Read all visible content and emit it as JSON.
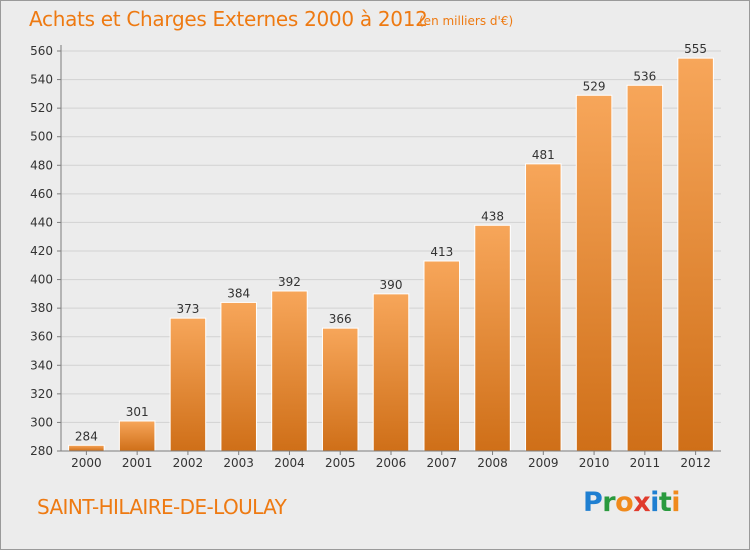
{
  "header": {
    "title": "Achats et Charges Externes 2000 à 2012",
    "unit": "(en milliers d'€)"
  },
  "footer": {
    "commune": "SAINT-HILAIRE-DE-LOULAY",
    "brand": "Proxiti",
    "brand_letters": [
      {
        "ch": "P",
        "color": "#1f7fd1"
      },
      {
        "ch": "r",
        "color": "#2a9a3e"
      },
      {
        "ch": "o",
        "color": "#f08a1c"
      },
      {
        "ch": "x",
        "color": "#e03b2d"
      },
      {
        "ch": "i",
        "color": "#1f7fd1"
      },
      {
        "ch": "t",
        "color": "#2a9a3e"
      },
      {
        "ch": "i",
        "color": "#f08a1c"
      }
    ]
  },
  "colors": {
    "accent": "#ee7a12",
    "bar_top": "#f7a65a",
    "bar_bottom": "#cf6f18",
    "axis": "#7d7d7d",
    "grid": "#d2d2d2",
    "background": "#ececec",
    "text": "#333333"
  },
  "chart_data": {
    "type": "bar",
    "title": "Achats et Charges Externes 2000 à 2012",
    "subtitle": "(en milliers d'€)",
    "categories": [
      "2000",
      "2001",
      "2002",
      "2003",
      "2004",
      "2005",
      "2006",
      "2007",
      "2008",
      "2009",
      "2010",
      "2011",
      "2012"
    ],
    "values": [
      284,
      301,
      373,
      384,
      392,
      366,
      390,
      413,
      438,
      481,
      529,
      536,
      555
    ],
    "ylim": [
      280,
      560
    ],
    "yticks": [
      280,
      300,
      320,
      340,
      360,
      380,
      400,
      420,
      440,
      460,
      480,
      500,
      520,
      540,
      560
    ],
    "xlabel": "",
    "ylabel": "",
    "grid": true,
    "data_labels": true
  }
}
